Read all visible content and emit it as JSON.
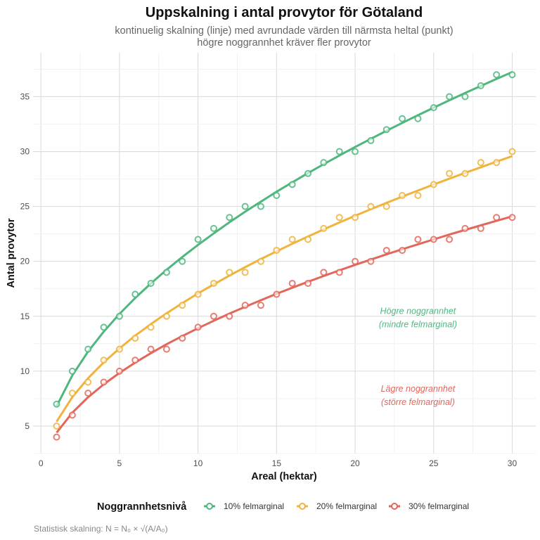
{
  "chart_data": {
    "type": "line",
    "title": "Uppskalning i antal provytor för Götaland",
    "subtitle": [
      "kontinuelig skalning (linje) med avrundade värden till närmsta heltal (punkt)",
      "högre noggrannhet kräver fler provytor"
    ],
    "xlabel": "Areal (hektar)",
    "ylabel": "Antal provytor",
    "xlim": [
      -0.5,
      31.5
    ],
    "ylim": [
      2.5,
      39
    ],
    "xticks": [
      0,
      5,
      10,
      15,
      20,
      25,
      30
    ],
    "yticks": [
      5,
      10,
      15,
      20,
      25,
      30,
      35
    ],
    "grid": true,
    "legend": {
      "title": "Noggrannhetsnivå",
      "position": "bottom"
    },
    "x": [
      1,
      2,
      3,
      4,
      5,
      6,
      7,
      8,
      9,
      10,
      11,
      12,
      13,
      14,
      15,
      16,
      17,
      18,
      19,
      20,
      21,
      22,
      23,
      24,
      25,
      26,
      27,
      28,
      29,
      30
    ],
    "series": [
      {
        "name": "10% felmarginal",
        "color": "#4fb77e",
        "line": [
          6.8,
          9.62,
          11.78,
          13.6,
          15.21,
          16.66,
          17.99,
          19.23,
          20.4,
          21.5,
          22.55,
          23.56,
          24.52,
          25.44,
          26.34,
          27.2,
          28.04,
          28.85,
          29.64,
          30.41,
          31.16,
          31.89,
          32.61,
          33.31,
          34,
          34.67,
          35.33,
          35.98,
          36.62,
          37.24
        ],
        "points": [
          7,
          10,
          12,
          14,
          15,
          17,
          18,
          19,
          20,
          22,
          23,
          24,
          25,
          25,
          26,
          27,
          28,
          29,
          30,
          30,
          31,
          32,
          33,
          33,
          34,
          35,
          35,
          36,
          37,
          37
        ]
      },
      {
        "name": "20% felmarginal",
        "color": "#f0b33c",
        "line": [
          5.4,
          7.64,
          9.35,
          10.8,
          12.07,
          13.23,
          14.29,
          15.27,
          16.2,
          17.08,
          17.91,
          18.71,
          19.47,
          20.21,
          20.91,
          21.6,
          22.26,
          22.91,
          23.54,
          24.15,
          24.75,
          25.33,
          25.9,
          26.45,
          27,
          27.53,
          28.06,
          28.57,
          29.08,
          29.58
        ],
        "points": [
          5,
          8,
          9,
          11,
          12,
          13,
          14,
          15,
          16,
          17,
          18,
          19,
          19,
          20,
          21,
          22,
          22,
          23,
          24,
          24,
          25,
          25,
          26,
          26,
          27,
          28,
          28,
          29,
          29,
          30
        ]
      },
      {
        "name": "30% felmarginal",
        "color": "#e3665b",
        "line": [
          4.4,
          6.22,
          7.62,
          8.8,
          9.84,
          10.78,
          11.64,
          12.45,
          13.2,
          13.91,
          14.59,
          15.24,
          15.86,
          16.46,
          17.04,
          17.6,
          18.14,
          18.67,
          19.18,
          19.68,
          20.16,
          20.64,
          21.1,
          21.56,
          22,
          22.44,
          22.86,
          23.28,
          23.69,
          24.1
        ],
        "points": [
          4,
          6,
          8,
          9,
          10,
          11,
          12,
          12,
          13,
          14,
          15,
          15,
          16,
          16,
          17,
          18,
          18,
          19,
          19,
          20,
          20,
          21,
          21,
          22,
          22,
          22,
          23,
          23,
          24,
          24
        ]
      }
    ],
    "annotations": [
      {
        "lines": [
          "Högre noggrannhet",
          "(mindre felmarginal)"
        ],
        "x": 24,
        "y": 14.9,
        "color": "#4fb77e"
      },
      {
        "lines": [
          "Lägre noggrannhet",
          "(större felmarginal)"
        ],
        "x": 24,
        "y": 7.8,
        "color": "#e3665b"
      }
    ],
    "caption": "Statistisk skalning: N = N₀ × √(A/A₀)"
  }
}
